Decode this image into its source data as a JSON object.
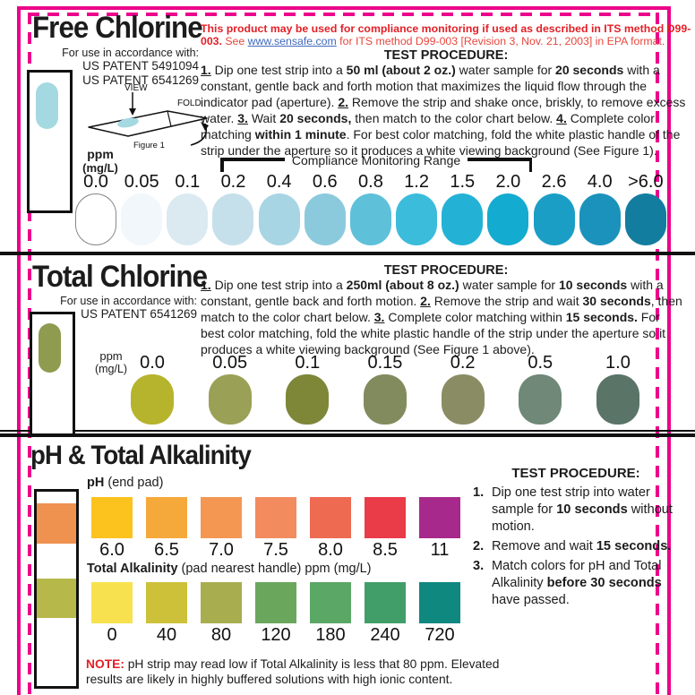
{
  "colors": {
    "magenta": "#ec008c",
    "red": "#e31f26",
    "red_light": "#e8463c",
    "link_blue": "#4169bd"
  },
  "free_chlorine": {
    "title": "Free Chlorine",
    "for_use": "For use in accordance with:",
    "patents": [
      "US PATENT 5491094",
      "US PATENT 6541269"
    ],
    "notice_runs": [
      {
        "t": "This product may be used for compliance monitoring if used as described in ITS method D99-003.",
        "b": true,
        "c": "#e31f26"
      },
      {
        "t": " See ",
        "c": "#e8463c"
      },
      {
        "t": "www.sensafe.com",
        "link": true
      },
      {
        "t": " for ITS method D99-003 [Revision 3, Nov. 21, 2003] in EPA format.",
        "c": "#e8463c"
      }
    ],
    "procedure_title": "TEST PROCEDURE:",
    "procedure_runs": [
      {
        "t": "1.",
        "b": true,
        "u": true
      },
      {
        "t": " Dip one test strip into a "
      },
      {
        "t": "50 ml (about 2 oz.)",
        "b": true
      },
      {
        "t": " water sample for "
      },
      {
        "t": "20 seconds",
        "b": true
      },
      {
        "t": " with a constant, gentle back and forth motion that maximizes the liquid flow through the indicator pad (aperture). "
      },
      {
        "t": "2.",
        "b": true,
        "u": true
      },
      {
        "t": " Remove the strip and shake once, briskly, to remove excess water. "
      },
      {
        "t": "3.",
        "b": true,
        "u": true
      },
      {
        "t": " Wait "
      },
      {
        "t": "20 seconds,",
        "b": true
      },
      {
        "t": " then match to the color chart below. "
      },
      {
        "t": "4.",
        "b": true,
        "u": true
      },
      {
        "t": " Complete color matching "
      },
      {
        "t": "within 1 minute",
        "b": true
      },
      {
        "t": ". For best color matching, fold the white plastic handle of the strip under the aperture so it produces a white viewing background (See Figure 1)."
      }
    ],
    "figure": {
      "view": "VIEW",
      "fold": "FOLD",
      "caption": "Figure 1"
    },
    "ppm": "ppm",
    "mgl": "(mg/L)",
    "range_label": "Compliance Monitoring Range",
    "strip_pad_color": "#a5d9e2",
    "scale": {
      "shape": "oval",
      "label_pos": "top",
      "outline_first": true,
      "labels": [
        "0.0",
        "0.05",
        "0.1",
        "0.2",
        "0.4",
        "0.6",
        "0.8",
        "1.2",
        "1.5",
        "2.0",
        "2.6",
        "4.0",
        ">6.0"
      ],
      "colors": [
        "#ffffff",
        "#f1f7fa",
        "#dbeaf1",
        "#c5e0ea",
        "#a7d5e3",
        "#8bcadd",
        "#5fc0da",
        "#3bbcdb",
        "#23b2d5",
        "#14abd0",
        "#1a9ec5",
        "#1b92bc",
        "#137da0"
      ]
    }
  },
  "total_chlorine": {
    "title": "Total Chlorine",
    "for_use": "For use in accordance with:",
    "patents": [
      "US PATENT 6541269"
    ],
    "procedure_title": "TEST PROCEDURE:",
    "procedure_runs": [
      {
        "t": "1.",
        "b": true,
        "u": true
      },
      {
        "t": " Dip one test strip into a "
      },
      {
        "t": "250ml (about 8 oz.)",
        "b": true
      },
      {
        "t": " water sample for "
      },
      {
        "t": "10 seconds",
        "b": true
      },
      {
        "t": " with a constant, gentle back and forth motion. "
      },
      {
        "t": "2.",
        "b": true,
        "u": true
      },
      {
        "t": " Remove the strip and wait "
      },
      {
        "t": "30 seconds",
        "b": true
      },
      {
        "t": ", then match to the color chart below. "
      },
      {
        "t": "3.",
        "b": true,
        "u": true
      },
      {
        "t": " Complete color matching within "
      },
      {
        "t": "15 seconds.",
        "b": true
      },
      {
        "t": " For best color matching, fold the white plastic handle of the strip under the aperture so it produces a white viewing background (See Figure 1 above)."
      }
    ],
    "ppm": "ppm",
    "mgl": "(mg/L)",
    "strip_pad_color": "#8f9b4e",
    "scale": {
      "shape": "oval",
      "label_pos": "top",
      "outline_first": false,
      "labels": [
        "0.0",
        "0.05",
        "0.1",
        "0.15",
        "0.2",
        "0.5",
        "1.0"
      ],
      "colors": [
        "#b6b32c",
        "#9aa156",
        "#7e8638",
        "#828b5d",
        "#8a8c63",
        "#6f8877",
        "#5a7468"
      ]
    }
  },
  "ph_alkalinity": {
    "title": "pH & Total Alkalinity",
    "ph_label_bold": "pH",
    "ph_label_rest": " (end pad)",
    "ta_label_bold": "Total Alkalinity",
    "ta_label_rest": " (pad nearest handle) ppm (mg/L)",
    "procedure_title": "TEST PROCEDURE:",
    "procedure_items": [
      {
        "num": "1.",
        "runs": [
          {
            "t": "Dip one test strip into water sample for "
          },
          {
            "t": "10 seconds",
            "b": true
          },
          {
            "t": " without motion."
          }
        ]
      },
      {
        "num": "2.",
        "runs": [
          {
            "t": "Remove and wait "
          },
          {
            "t": "15 seconds.",
            "b": true
          }
        ]
      },
      {
        "num": "3.",
        "runs": [
          {
            "t": "Match colors for pH and Total Alkalinity "
          },
          {
            "t": "before 30 seconds",
            "b": true
          },
          {
            "t": " have passed."
          }
        ]
      }
    ],
    "note_runs": [
      {
        "t": "NOTE:",
        "b": true,
        "c": "#e31f26"
      },
      {
        "t": " pH strip may read low if Total Alkalinity is less that 80 ppm. Elevated results are likely in highly buffered solutions with high ionic content."
      }
    ],
    "strip_ph_pad_color": "#f0924f",
    "strip_ta_pad_color": "#b6b94a",
    "ph_scale": {
      "shape": "square",
      "label_pos": "bottom",
      "outline_first": false,
      "labels": [
        "6.0",
        "6.5",
        "7.0",
        "7.5",
        "8.0",
        "8.5",
        "11"
      ],
      "colors": [
        "#fcc21d",
        "#f6a93b",
        "#f49753",
        "#f28c5f",
        "#ee6a51",
        "#e93b48",
        "#a8298c"
      ]
    },
    "ta_scale": {
      "shape": "square",
      "label_pos": "bottom",
      "outline_first": false,
      "labels": [
        "0",
        "40",
        "80",
        "120",
        "180",
        "240",
        "720"
      ],
      "colors": [
        "#f8e14e",
        "#ccc139",
        "#a8ad50",
        "#6aa75d",
        "#5ba766",
        "#419e68",
        "#0f8880"
      ]
    }
  }
}
